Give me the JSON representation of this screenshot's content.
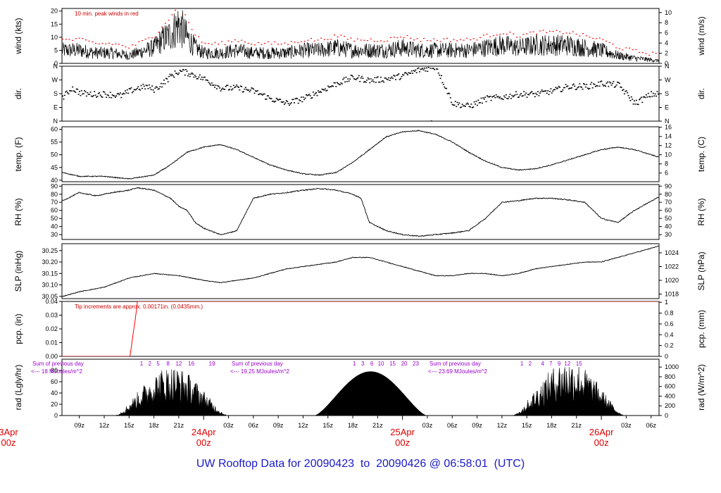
{
  "footer": {
    "prefix": "UW Rooftop Data for ",
    "start": "20090423",
    "sep": "  to  ",
    "end": "20090426",
    "at": " @ 06:58:01  (UTC)"
  },
  "colors": {
    "axis": "#000000",
    "peak": "#ff0000",
    "note": "#cc0000",
    "purple": "#9900cc",
    "date": "#dd0000",
    "title": "#1a1acc"
  },
  "time_axis": {
    "ticks": [
      "09z",
      "12z",
      "15z",
      "18z",
      "21z",
      "03z",
      "06z",
      "09z",
      "12z",
      "15z",
      "18z",
      "21z",
      "03z",
      "06z",
      "09z",
      "12z",
      "15z",
      "18z",
      "21z",
      "03z",
      "06z"
    ],
    "tick_hours": [
      9,
      12,
      15,
      18,
      21,
      27,
      30,
      33,
      36,
      39,
      42,
      45,
      51,
      54,
      57,
      60,
      63,
      66,
      69,
      75,
      78
    ],
    "date_labels": [
      {
        "day": "3Apr",
        "hour": "00z",
        "at": 0
      },
      {
        "day": "24Apr",
        "hour": "00z",
        "at": 24
      },
      {
        "day": "25Apr",
        "hour": "00z",
        "at": 48
      },
      {
        "day": "26Apr",
        "hour": "00z",
        "at": 72
      }
    ],
    "xlim_hours": [
      6.9,
      78.96
    ]
  },
  "chart_data": [
    {
      "type": "line",
      "id": "wind",
      "ylabel_left": "wind (kts)",
      "ylabel_right": "wind (m/s)",
      "ylim": [
        0,
        21
      ],
      "yticks_left": [
        0,
        5,
        10,
        15,
        20
      ],
      "yticks_right_labels": [
        "0",
        "2",
        "4",
        "6",
        "8",
        "10"
      ],
      "yticks_right_values": [
        0,
        3.89,
        7.78,
        11.66,
        15.55,
        19.44
      ],
      "annotation": "10 min. peak winds in red",
      "x_hours": [
        7,
        9,
        11,
        13,
        15,
        16,
        17,
        18,
        19,
        20,
        21,
        22,
        23,
        24,
        26,
        28,
        30,
        32,
        34,
        36,
        38,
        40,
        42,
        44,
        46,
        48,
        50,
        52,
        54,
        56,
        58,
        60,
        62,
        64,
        66,
        68,
        70,
        72,
        74,
        76,
        79
      ],
      "values": [
        5,
        5,
        4,
        4,
        3,
        4,
        5,
        6,
        9,
        11,
        15,
        10,
        6,
        4,
        4,
        5,
        4,
        4,
        4,
        5,
        5,
        6,
        5,
        5,
        5,
        6,
        5,
        5,
        5,
        5,
        6,
        7,
        6,
        7,
        7,
        7,
        6,
        5,
        3,
        2,
        1
      ]
    },
    {
      "type": "scatter",
      "id": "dir",
      "ylabel_left": "dir.",
      "ylabel_right": "dir.",
      "ylim": [
        0,
        360
      ],
      "ytick_labels": [
        "N",
        "E",
        "S",
        "W",
        "N"
      ],
      "ytick_values": [
        0,
        90,
        180,
        270,
        360
      ],
      "x_hours": [
        7,
        8,
        9,
        10,
        12,
        14,
        15,
        16,
        17,
        18,
        19,
        20,
        21,
        22,
        24,
        26,
        28,
        30,
        32,
        34,
        36,
        38,
        40,
        42,
        44,
        46,
        48,
        50,
        52,
        54,
        56,
        58,
        60,
        62,
        64,
        66,
        68,
        70,
        72,
        74,
        76,
        78
      ],
      "values": [
        160,
        220,
        190,
        180,
        180,
        170,
        200,
        220,
        230,
        210,
        250,
        300,
        330,
        320,
        280,
        220,
        220,
        200,
        150,
        120,
        150,
        200,
        250,
        290,
        270,
        280,
        300,
        340,
        360,
        120,
        100,
        150,
        160,
        180,
        180,
        200,
        230,
        230,
        250,
        240,
        120,
        180
      ]
    },
    {
      "type": "line",
      "id": "temp",
      "ylabel_left": "temp. (F)",
      "ylabel_right": "temp. (C)",
      "ylim": [
        39.4,
        61
      ],
      "yticks_left": [
        40,
        45,
        50,
        55,
        60
      ],
      "yticks_right_labels": [
        "6",
        "8",
        "10",
        "12",
        "14",
        "16"
      ],
      "yticks_right_values": [
        42.8,
        46.4,
        50,
        53.6,
        57.2,
        60.8
      ],
      "x_hours": [
        7,
        9,
        12,
        15,
        18,
        20,
        22,
        24,
        26,
        28,
        30,
        32,
        34,
        36,
        38,
        40,
        42,
        44,
        46,
        48,
        50,
        52,
        54,
        56,
        58,
        60,
        62,
        64,
        66,
        68,
        70,
        72,
        74,
        76,
        79
      ],
      "values": [
        43,
        41.5,
        41.5,
        40.5,
        42,
        46,
        51,
        53,
        54,
        52,
        49,
        46,
        44,
        42.5,
        42,
        43,
        47,
        52,
        57,
        59,
        59.5,
        58,
        55,
        51,
        47.5,
        45,
        44,
        44.5,
        46,
        48,
        50,
        52,
        53,
        52,
        49
      ]
    },
    {
      "type": "line",
      "id": "rh",
      "ylabel_left": "RH (%)",
      "ylabel_right": "RH (%)",
      "ylim": [
        24,
        92
      ],
      "yticks_left": [
        30,
        40,
        50,
        60,
        70,
        80,
        90
      ],
      "yticks_right_labels": [
        "30",
        "40",
        "50",
        "60",
        "70",
        "80",
        "90"
      ],
      "yticks_right_values": [
        30,
        40,
        50,
        60,
        70,
        80,
        90
      ],
      "x_hours": [
        7,
        9,
        11,
        13,
        15,
        16,
        18,
        20,
        21,
        22,
        23,
        24,
        26,
        27,
        28,
        30,
        32,
        34,
        36,
        38,
        40,
        42,
        43,
        44,
        46,
        48,
        50,
        52,
        54,
        56,
        58,
        60,
        62,
        64,
        66,
        68,
        70,
        72,
        74,
        76,
        79
      ],
      "values": [
        72,
        82,
        78,
        82,
        85,
        88,
        85,
        75,
        65,
        60,
        45,
        38,
        30,
        32,
        35,
        75,
        80,
        82,
        85,
        87,
        85,
        80,
        75,
        45,
        35,
        30,
        28,
        30,
        32,
        35,
        50,
        70,
        72,
        75,
        75,
        73,
        70,
        50,
        45,
        60,
        77
      ]
    },
    {
      "type": "line",
      "id": "slp",
      "ylabel_left": "SLP (inHg)",
      "ylabel_right": "SLP (hPa)",
      "ylim": [
        30.04,
        30.28
      ],
      "yticks_left": [
        30.05,
        30.1,
        30.15,
        30.2,
        30.25
      ],
      "yticks_right_labels": [
        "1018",
        "1020",
        "1022",
        "1024"
      ],
      "yticks_right_values": [
        30.06,
        30.12,
        30.18,
        30.24
      ],
      "x_hours": [
        7,
        9,
        12,
        15,
        18,
        21,
        24,
        26,
        28,
        30,
        32,
        34,
        36,
        38,
        40,
        42,
        44,
        46,
        48,
        50,
        52,
        54,
        56,
        58,
        60,
        62,
        64,
        66,
        68,
        70,
        72,
        74,
        76,
        78,
        79
      ],
      "values": [
        30.05,
        30.07,
        30.09,
        30.13,
        30.15,
        30.14,
        30.12,
        30.11,
        30.12,
        30.13,
        30.15,
        30.17,
        30.18,
        30.19,
        30.2,
        30.22,
        30.22,
        30.2,
        30.18,
        30.16,
        30.14,
        30.14,
        30.15,
        30.15,
        30.14,
        30.15,
        30.17,
        30.18,
        30.19,
        30.2,
        30.2,
        30.22,
        30.24,
        30.26,
        30.27
      ]
    },
    {
      "type": "line",
      "id": "pcp",
      "ylabel_left": "pcp. (in)",
      "ylabel_right": "pcp. (mm)",
      "ylim": [
        0,
        0.04
      ],
      "yticks_left_labels": [
        "0.00",
        "0.01",
        "0.02",
        "0.03",
        "0.04"
      ],
      "yticks_left": [
        0,
        0.01,
        0.02,
        0.03,
        0.04
      ],
      "yticks_right_labels": [
        "0",
        "0.2",
        "0.4",
        "0.6",
        "0.8",
        "1"
      ],
      "yticks_right_values": [
        0,
        0.00787,
        0.01575,
        0.02362,
        0.0315,
        0.03937
      ],
      "annotation": "Tip increments are approx. 0.00171in. (0.0435mm.)",
      "x_hours": [
        7,
        15.1,
        15.3,
        15.5,
        15.7,
        15.9,
        16.0,
        79
      ],
      "values": [
        0,
        0,
        0.008,
        0.017,
        0.025,
        0.034,
        0.04,
        0.04
      ]
    },
    {
      "type": "area",
      "id": "rad",
      "ylabel_left": "rad (Lgly/hr)",
      "ylabel_right": "rad (W/m^2)",
      "ylim": [
        0,
        100
      ],
      "yticks_left": [
        0,
        20,
        40,
        60,
        80
      ],
      "yticks_right_labels": [
        "0",
        "200",
        "400",
        "600",
        "800",
        "1000"
      ],
      "yticks_right_values": [
        0,
        17.2,
        34.4,
        51.6,
        68.8,
        86
      ],
      "daily_sums": [
        {
          "line1": "Sum of previous day",
          "line2": "<--- 18 MJoules/m^2",
          "x": 0
        },
        {
          "line1": "Sum of previous day",
          "line2": "<--- 19.25 MJoules/m^2",
          "x": 24
        },
        {
          "line1": "Sum of previous day",
          "line2": "<--- 23.69 MJoules/m^2",
          "x": 48
        }
      ],
      "hour_labels": [
        {
          "t": "1",
          "x": 16.5
        },
        {
          "t": "2",
          "x": 17.5
        },
        {
          "t": "5",
          "x": 18.5
        },
        {
          "t": "8",
          "x": 19.7
        },
        {
          "t": "12",
          "x": 21
        },
        {
          "t": "16",
          "x": 22.5
        },
        {
          "t": "19",
          "x": 25
        },
        {
          "t": "1",
          "x": 42.2
        },
        {
          "t": "3",
          "x": 43.2
        },
        {
          "t": "6",
          "x": 44.3
        },
        {
          "t": "10",
          "x": 45.4
        },
        {
          "t": "15",
          "x": 46.8
        },
        {
          "t": "20",
          "x": 48.2
        },
        {
          "t": "23",
          "x": 49.6
        },
        {
          "t": "1",
          "x": 62.4
        },
        {
          "t": "2",
          "x": 63.4
        },
        {
          "t": "4",
          "x": 64.9
        },
        {
          "t": "7",
          "x": 65.9
        },
        {
          "t": "9",
          "x": 66.9
        },
        {
          "t": "12",
          "x": 67.9
        },
        {
          "t": "15",
          "x": 69.3
        }
      ],
      "days": [
        {
          "rise": 13.3,
          "set": 26.9,
          "peak": 88
        },
        {
          "rise": 37.4,
          "set": 50.9,
          "peak": 78
        },
        {
          "rise": 61.3,
          "set": 74.8,
          "peak": 98
        }
      ]
    }
  ]
}
